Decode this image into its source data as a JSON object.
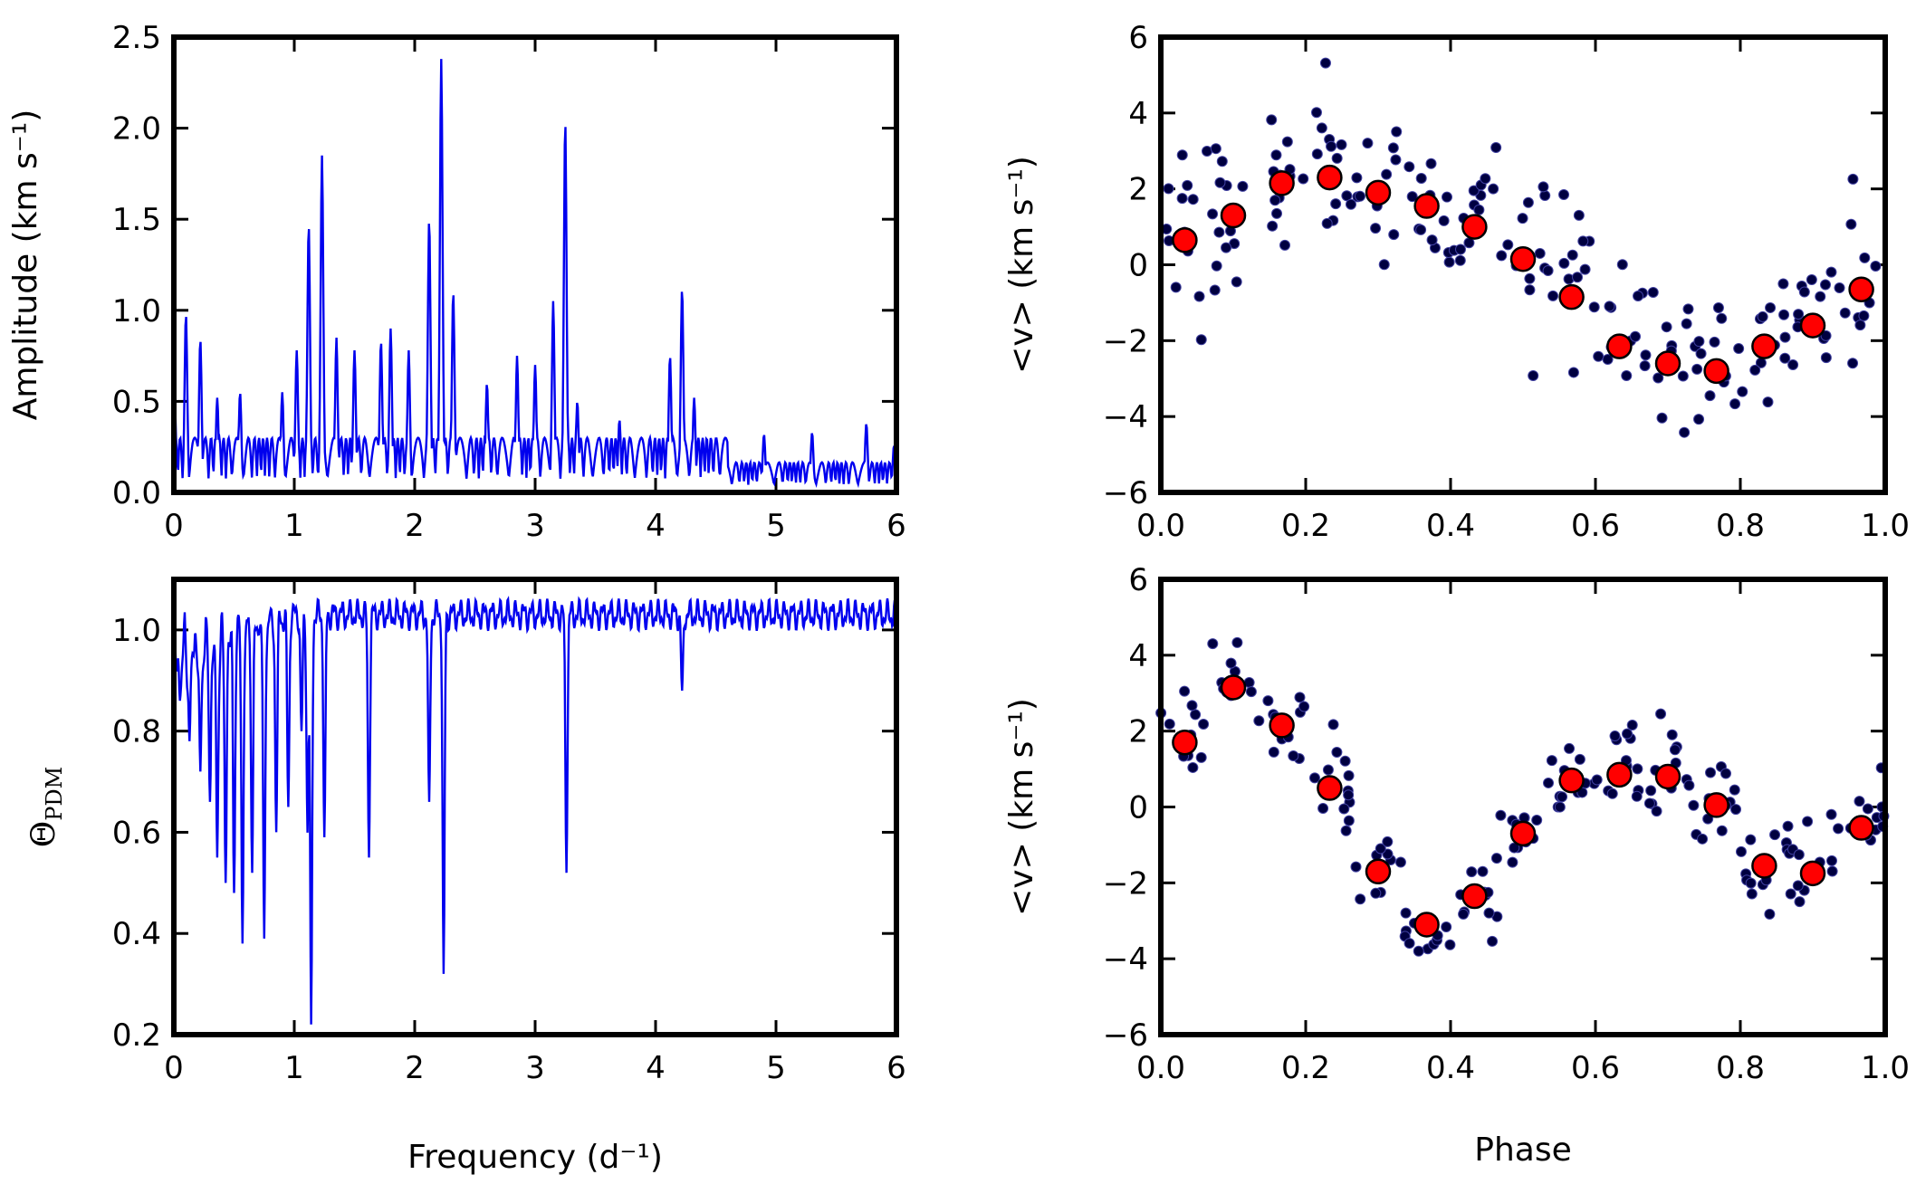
{
  "chart_data": [
    {
      "type": "line",
      "panel": "amplitude-spectrum",
      "xlabel": "",
      "ylabel": "Amplitude (km s⁻¹)",
      "xlim": [
        0,
        6
      ],
      "ylim": [
        0,
        2.5
      ],
      "xticks": [
        "0",
        "1",
        "2",
        "3",
        "4",
        "5",
        "6"
      ],
      "yticks": [
        "0.0",
        "0.5",
        "1.0",
        "1.5",
        "2.0",
        "2.5"
      ],
      "color": "#0000ee",
      "noise_floor": 0.3,
      "peaks": [
        {
          "x": 0.0,
          "y": 0.8
        },
        {
          "x": 0.1,
          "y": 0.98
        },
        {
          "x": 0.22,
          "y": 0.84
        },
        {
          "x": 0.36,
          "y": 0.52
        },
        {
          "x": 0.55,
          "y": 0.55
        },
        {
          "x": 0.9,
          "y": 0.55
        },
        {
          "x": 1.02,
          "y": 0.78
        },
        {
          "x": 1.12,
          "y": 1.47
        },
        {
          "x": 1.23,
          "y": 1.85
        },
        {
          "x": 1.35,
          "y": 0.85
        },
        {
          "x": 1.5,
          "y": 0.78
        },
        {
          "x": 1.72,
          "y": 0.83
        },
        {
          "x": 1.8,
          "y": 0.9
        },
        {
          "x": 1.95,
          "y": 0.78
        },
        {
          "x": 2.12,
          "y": 1.5
        },
        {
          "x": 2.22,
          "y": 2.38
        },
        {
          "x": 2.32,
          "y": 1.1
        },
        {
          "x": 2.6,
          "y": 0.6
        },
        {
          "x": 2.85,
          "y": 0.75
        },
        {
          "x": 3.0,
          "y": 0.7
        },
        {
          "x": 3.15,
          "y": 1.05
        },
        {
          "x": 3.25,
          "y": 2.04
        },
        {
          "x": 3.35,
          "y": 0.5
        },
        {
          "x": 3.7,
          "y": 0.4
        },
        {
          "x": 4.12,
          "y": 0.75
        },
        {
          "x": 4.22,
          "y": 1.12
        },
        {
          "x": 4.32,
          "y": 0.52
        },
        {
          "x": 4.9,
          "y": 0.32
        },
        {
          "x": 5.3,
          "y": 0.33
        },
        {
          "x": 5.75,
          "y": 0.38
        },
        {
          "x": 5.98,
          "y": 0.26
        }
      ]
    },
    {
      "type": "line",
      "panel": "pdm-theta",
      "xlabel": "Frequency (d⁻¹)",
      "ylabel": "Θ_PDM",
      "xlim": [
        0,
        6
      ],
      "ylim": [
        0.2,
        1.1
      ],
      "xticks": [
        "0",
        "1",
        "2",
        "3",
        "4",
        "5",
        "6"
      ],
      "yticks": [
        "0.2",
        "0.4",
        "0.6",
        "0.8",
        "1.0"
      ],
      "color": "#0000ee",
      "baseline": 1.03,
      "dips": [
        {
          "x": 0.05,
          "y": 0.86
        },
        {
          "x": 0.13,
          "y": 0.78
        },
        {
          "x": 0.22,
          "y": 0.72
        },
        {
          "x": 0.3,
          "y": 0.66
        },
        {
          "x": 0.36,
          "y": 0.55
        },
        {
          "x": 0.43,
          "y": 0.5
        },
        {
          "x": 0.5,
          "y": 0.48
        },
        {
          "x": 0.57,
          "y": 0.38
        },
        {
          "x": 0.65,
          "y": 0.52
        },
        {
          "x": 0.75,
          "y": 0.39
        },
        {
          "x": 0.85,
          "y": 0.6
        },
        {
          "x": 0.95,
          "y": 0.65
        },
        {
          "x": 1.06,
          "y": 0.8
        },
        {
          "x": 1.11,
          "y": 0.6
        },
        {
          "x": 1.14,
          "y": 0.22
        },
        {
          "x": 1.25,
          "y": 0.59
        },
        {
          "x": 1.62,
          "y": 0.55
        },
        {
          "x": 2.12,
          "y": 0.66
        },
        {
          "x": 2.24,
          "y": 0.32
        },
        {
          "x": 3.26,
          "y": 0.52
        },
        {
          "x": 4.22,
          "y": 0.88
        }
      ]
    },
    {
      "type": "scatter",
      "panel": "phase-fold-1",
      "xlabel": "",
      "ylabel": "<v> (km s⁻¹)",
      "xlim": [
        0,
        1
      ],
      "ylim": [
        -6,
        6
      ],
      "xticks": [
        "0.0",
        "0.2",
        "0.4",
        "0.6",
        "0.8",
        "1.0"
      ],
      "yticks": [
        "−6",
        "−4",
        "−2",
        "0",
        "2",
        "4",
        "6"
      ],
      "series": [
        {
          "marker": "big-red",
          "x": [
            0.033,
            0.1,
            0.167,
            0.233,
            0.3,
            0.367,
            0.433,
            0.5,
            0.567,
            0.633,
            0.7,
            0.767,
            0.833,
            0.9,
            0.967
          ],
          "y": [
            0.65,
            1.3,
            2.15,
            2.3,
            1.9,
            1.55,
            1.0,
            0.15,
            -0.85,
            -2.15,
            -2.6,
            -2.8,
            -2.15,
            -1.6,
            -0.65
          ]
        }
      ],
      "scatter_color": "#000040",
      "scatter_edge": "#4040a0",
      "scatter_sigma": 1.1
    },
    {
      "type": "scatter",
      "panel": "phase-fold-2",
      "xlabel": "Phase",
      "ylabel": "<v> (km s⁻¹)",
      "xlim": [
        0,
        1
      ],
      "ylim": [
        -6,
        6
      ],
      "xticks": [
        "0.0",
        "0.2",
        "0.4",
        "0.6",
        "0.8",
        "1.0"
      ],
      "yticks": [
        "−6",
        "−4",
        "−2",
        "0",
        "2",
        "4",
        "6"
      ],
      "series": [
        {
          "marker": "big-red",
          "x": [
            0.033,
            0.1,
            0.167,
            0.233,
            0.3,
            0.367,
            0.433,
            0.5,
            0.567,
            0.633,
            0.7,
            0.767,
            0.833,
            0.9,
            0.967
          ],
          "y": [
            1.7,
            3.15,
            2.15,
            0.5,
            -1.7,
            -3.1,
            -2.35,
            -0.7,
            0.7,
            0.85,
            0.8,
            0.05,
            -1.55,
            -1.75,
            -0.55
          ]
        }
      ],
      "scatter_color": "#000040",
      "scatter_edge": "#4040a0",
      "scatter_sigma": 0.6
    }
  ],
  "colors": {
    "line": "#0000ee",
    "binned_fill": "#ff0000",
    "binned_edge": "#000000",
    "frame": "#000000"
  }
}
